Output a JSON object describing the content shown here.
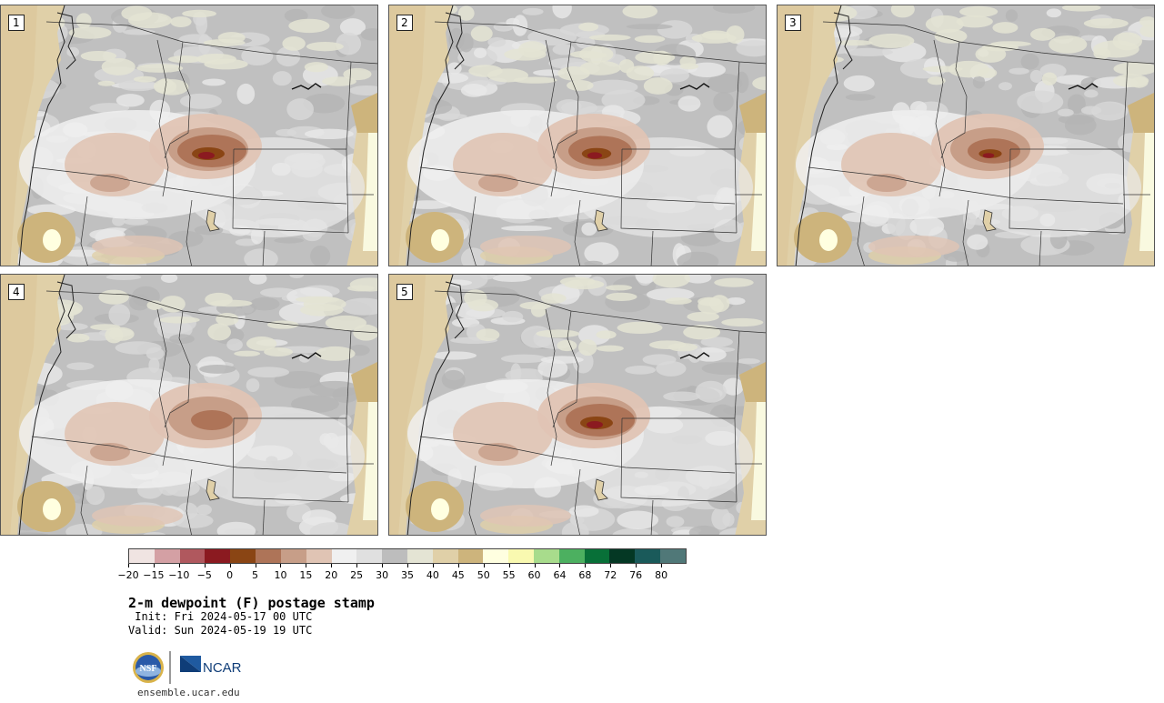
{
  "panels": [
    {
      "label": "1"
    },
    {
      "label": "2"
    },
    {
      "label": "3"
    },
    {
      "label": "4"
    },
    {
      "label": "5"
    }
  ],
  "colorbar": {
    "colors": [
      "#f0e4e2",
      "#d4a0a4",
      "#b0585e",
      "#8b1a20",
      "#8a4514",
      "#ae7458",
      "#c79e88",
      "#e0c4b4",
      "#f0f0f0",
      "#e0e0e0",
      "#bdbdbd",
      "#e4e4d4",
      "#e0d0a8",
      "#cdb47c",
      "#ffffe0",
      "#f9f9b0",
      "#a8dc8c",
      "#4cb060",
      "#087038",
      "#043824",
      "#1a5a5a",
      "#507878"
    ],
    "ticks": [
      "−20",
      "−15",
      "−10",
      "−5",
      "0",
      "5",
      "10",
      "15",
      "20",
      "25",
      "30",
      "35",
      "40",
      "45",
      "50",
      "55",
      "60",
      "64",
      "68",
      "72",
      "76",
      "80"
    ]
  },
  "title": "2-m dewpoint (F) postage stamp",
  "init": " Init: Fri 2024-05-17 00 UTC",
  "valid": "Valid: Sun 2024-05-19 19 UTC",
  "logos": {
    "nsf": "NSF",
    "ncar": "NCAR"
  },
  "url": "ensemble.ucar.edu"
}
